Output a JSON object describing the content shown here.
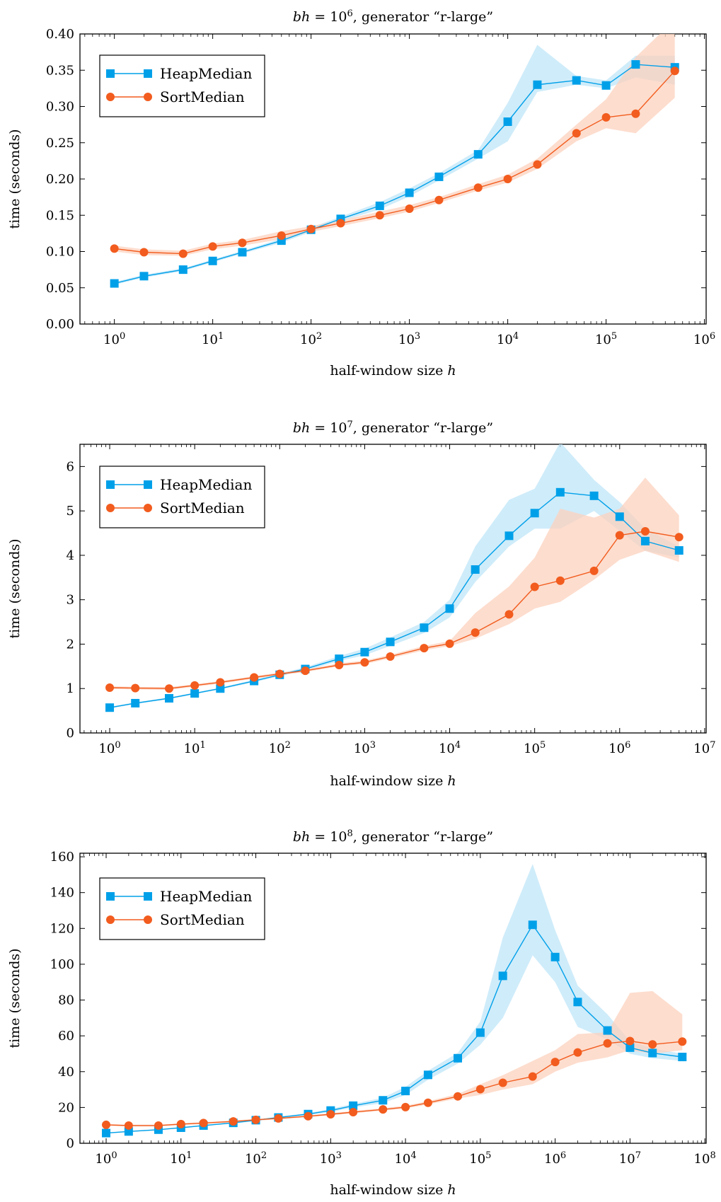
{
  "colors": {
    "heap": "#00a0e9",
    "heap_band": "#bfe6f8",
    "sort": "#f25c1e",
    "sort_band": "#fcd2bd"
  },
  "chart_data": [
    {
      "type": "line",
      "title_prefix": "bh = 10",
      "title_exp": "6",
      "title_suffix": ", generator “r-large”",
      "xlabel_text": "half-window size ",
      "xlabel_var": "h",
      "ylabel": "time (seconds)",
      "xscale": "log",
      "xlim_exp": [
        0,
        6
      ],
      "ylim": [
        0,
        0.4
      ],
      "yticks": [
        "0.00",
        "0.05",
        "0.10",
        "0.15",
        "0.20",
        "0.25",
        "0.30",
        "0.35",
        "0.40"
      ],
      "ytick_values": [
        0,
        0.05,
        0.1,
        0.15,
        0.2,
        0.25,
        0.3,
        0.35,
        0.4
      ],
      "xticks_exp": [
        "0",
        "1",
        "2",
        "3",
        "4",
        "5",
        "6"
      ],
      "legend_position": "top-left",
      "x": [
        1,
        2,
        5,
        10,
        20,
        50,
        100,
        200,
        500,
        1000,
        2000,
        5000,
        10000,
        20000,
        50000,
        100000,
        200000,
        500000
      ],
      "series": [
        {
          "name": "HeapMedian",
          "marker": "square",
          "values": [
            0.056,
            0.066,
            0.075,
            0.087,
            0.099,
            0.115,
            0.13,
            0.145,
            0.163,
            0.181,
            0.203,
            0.234,
            0.279,
            0.33,
            0.336,
            0.329,
            0.358,
            0.354
          ],
          "upper": [
            0.058,
            0.068,
            0.077,
            0.089,
            0.101,
            0.118,
            0.133,
            0.148,
            0.168,
            0.187,
            0.208,
            0.24,
            0.305,
            0.385,
            0.342,
            0.336,
            0.37,
            0.37
          ],
          "lower": [
            0.054,
            0.064,
            0.073,
            0.085,
            0.097,
            0.112,
            0.127,
            0.142,
            0.158,
            0.176,
            0.198,
            0.228,
            0.252,
            0.32,
            0.33,
            0.325,
            0.34,
            0.33
          ]
        },
        {
          "name": "SortMedian",
          "marker": "circle",
          "values": [
            0.104,
            0.099,
            0.097,
            0.107,
            0.112,
            0.122,
            0.131,
            0.139,
            0.15,
            0.159,
            0.171,
            0.188,
            0.2,
            0.22,
            0.263,
            0.285,
            0.29,
            0.349
          ],
          "upper": [
            0.108,
            0.103,
            0.101,
            0.111,
            0.116,
            0.128,
            0.135,
            0.143,
            0.155,
            0.164,
            0.175,
            0.193,
            0.206,
            0.228,
            0.275,
            0.31,
            0.368,
            0.42
          ],
          "lower": [
            0.1,
            0.095,
            0.094,
            0.103,
            0.108,
            0.117,
            0.127,
            0.135,
            0.146,
            0.155,
            0.167,
            0.184,
            0.195,
            0.214,
            0.252,
            0.27,
            0.263,
            0.312
          ]
        }
      ]
    },
    {
      "type": "line",
      "title_prefix": "bh = 10",
      "title_exp": "7",
      "title_suffix": ", generator “r-large”",
      "xlabel_text": "half-window size ",
      "xlabel_var": "h",
      "ylabel": "time (seconds)",
      "xscale": "log",
      "xlim_exp": [
        0,
        7
      ],
      "ylim": [
        0,
        6.5
      ],
      "yticks": [
        "0",
        "1",
        "2",
        "3",
        "4",
        "5",
        "6"
      ],
      "ytick_values": [
        0,
        1,
        2,
        3,
        4,
        5,
        6
      ],
      "xticks_exp": [
        "0",
        "1",
        "2",
        "3",
        "4",
        "5",
        "6",
        "7"
      ],
      "legend_position": "top-left",
      "x": [
        1,
        2,
        5,
        10,
        20,
        50,
        100,
        200,
        500,
        1000,
        2000,
        5000,
        10000,
        20000,
        50000,
        100000,
        200000,
        500000,
        1000000,
        2000000,
        5000000
      ],
      "series": [
        {
          "name": "HeapMedian",
          "marker": "square",
          "values": [
            0.57,
            0.67,
            0.78,
            0.89,
            1.0,
            1.17,
            1.31,
            1.44,
            1.67,
            1.82,
            2.05,
            2.37,
            2.8,
            3.68,
            4.44,
            4.95,
            5.42,
            5.34,
            4.87,
            4.32,
            4.11
          ],
          "upper": [
            0.59,
            0.69,
            0.8,
            0.91,
            1.02,
            1.2,
            1.34,
            1.48,
            1.73,
            1.9,
            2.15,
            2.5,
            3.0,
            4.2,
            5.25,
            5.5,
            6.55,
            5.7,
            5.2,
            4.6,
            4.2
          ],
          "lower": [
            0.55,
            0.65,
            0.76,
            0.87,
            0.98,
            1.14,
            1.28,
            1.4,
            1.62,
            1.75,
            1.96,
            2.25,
            2.6,
            3.4,
            4.2,
            4.6,
            4.6,
            5.0,
            4.55,
            4.1,
            3.95
          ]
        },
        {
          "name": "SortMedian",
          "marker": "circle",
          "values": [
            1.02,
            1.01,
            1.0,
            1.07,
            1.14,
            1.25,
            1.33,
            1.4,
            1.53,
            1.59,
            1.72,
            1.91,
            2.01,
            2.26,
            2.67,
            3.29,
            3.43,
            3.65,
            4.45,
            4.54,
            4.41
          ],
          "upper": [
            1.05,
            1.04,
            1.03,
            1.1,
            1.17,
            1.28,
            1.36,
            1.43,
            1.57,
            1.63,
            1.76,
            1.96,
            2.07,
            2.7,
            3.3,
            3.95,
            5.05,
            4.85,
            5.05,
            5.75,
            4.9
          ],
          "lower": [
            0.99,
            0.98,
            0.97,
            1.04,
            1.11,
            1.22,
            1.3,
            1.37,
            1.5,
            1.55,
            1.68,
            1.86,
            1.96,
            2.12,
            2.45,
            2.8,
            2.95,
            3.45,
            3.9,
            4.1,
            3.85
          ]
        }
      ]
    },
    {
      "type": "line",
      "title_prefix": "bh = 10",
      "title_exp": "8",
      "title_suffix": ", generator “r-large”",
      "xlabel_text": "half-window size ",
      "xlabel_var": "h",
      "ylabel": "time (seconds)",
      "xscale": "log",
      "xlim_exp": [
        0,
        8
      ],
      "ylim": [
        0,
        162
      ],
      "yticks": [
        "0",
        "20",
        "40",
        "60",
        "80",
        "100",
        "120",
        "140",
        "160"
      ],
      "ytick_values": [
        0,
        20,
        40,
        60,
        80,
        100,
        120,
        140,
        160
      ],
      "xticks_exp": [
        "0",
        "1",
        "2",
        "3",
        "4",
        "5",
        "6",
        "7",
        "8"
      ],
      "legend_position": "top-left",
      "x": [
        1,
        2,
        5,
        10,
        20,
        50,
        100,
        200,
        500,
        1000,
        2000,
        5000,
        10000,
        20000,
        50000,
        100000,
        200000,
        500000,
        1000000,
        2000000,
        5000000,
        10000000,
        20000000,
        50000000
      ],
      "series": [
        {
          "name": "HeapMedian",
          "marker": "square",
          "values": [
            5.7,
            6.6,
            7.6,
            8.7,
            9.9,
            11.4,
            12.9,
            14.4,
            16.3,
            18.3,
            21.0,
            24.0,
            29.2,
            38.2,
            47.5,
            61.8,
            93.5,
            122,
            104,
            78.9,
            63,
            53.4,
            50.4,
            48.2
          ],
          "upper": [
            6.0,
            6.9,
            7.9,
            9.0,
            10.2,
            11.8,
            13.3,
            14.9,
            16.9,
            19.2,
            22.0,
            25.5,
            31.5,
            40.5,
            50.5,
            68,
            115,
            156,
            119,
            88,
            72,
            57,
            53,
            50
          ],
          "lower": [
            5.4,
            6.3,
            7.3,
            8.4,
            9.6,
            11.0,
            12.5,
            13.9,
            15.7,
            17.5,
            20.0,
            22.5,
            27,
            35.5,
            44.5,
            55,
            70,
            105,
            90,
            65,
            58,
            50,
            47.5,
            46
          ]
        },
        {
          "name": "SortMedian",
          "marker": "circle",
          "values": [
            10.3,
            9.9,
            9.9,
            10.7,
            11.3,
            12.2,
            13.1,
            13.9,
            15.1,
            16.2,
            17.4,
            18.9,
            20.2,
            22.6,
            26.2,
            30.2,
            33.8,
            37.3,
            45.4,
            50.7,
            55.8,
            57.1,
            55.2,
            56.8
          ],
          "upper": [
            10.8,
            10.4,
            10.4,
            11.2,
            11.8,
            12.7,
            13.6,
            14.4,
            15.6,
            16.8,
            18.0,
            19.6,
            21.0,
            23.5,
            27.5,
            33,
            38,
            46,
            52,
            61,
            62,
            84,
            85,
            72
          ],
          "lower": [
            9.8,
            9.4,
            9.4,
            10.2,
            10.8,
            11.7,
            12.6,
            13.4,
            14.6,
            15.6,
            16.8,
            18.2,
            19.4,
            21.7,
            25,
            27,
            30,
            33,
            40,
            45,
            48,
            52,
            50,
            52
          ]
        }
      ]
    }
  ]
}
